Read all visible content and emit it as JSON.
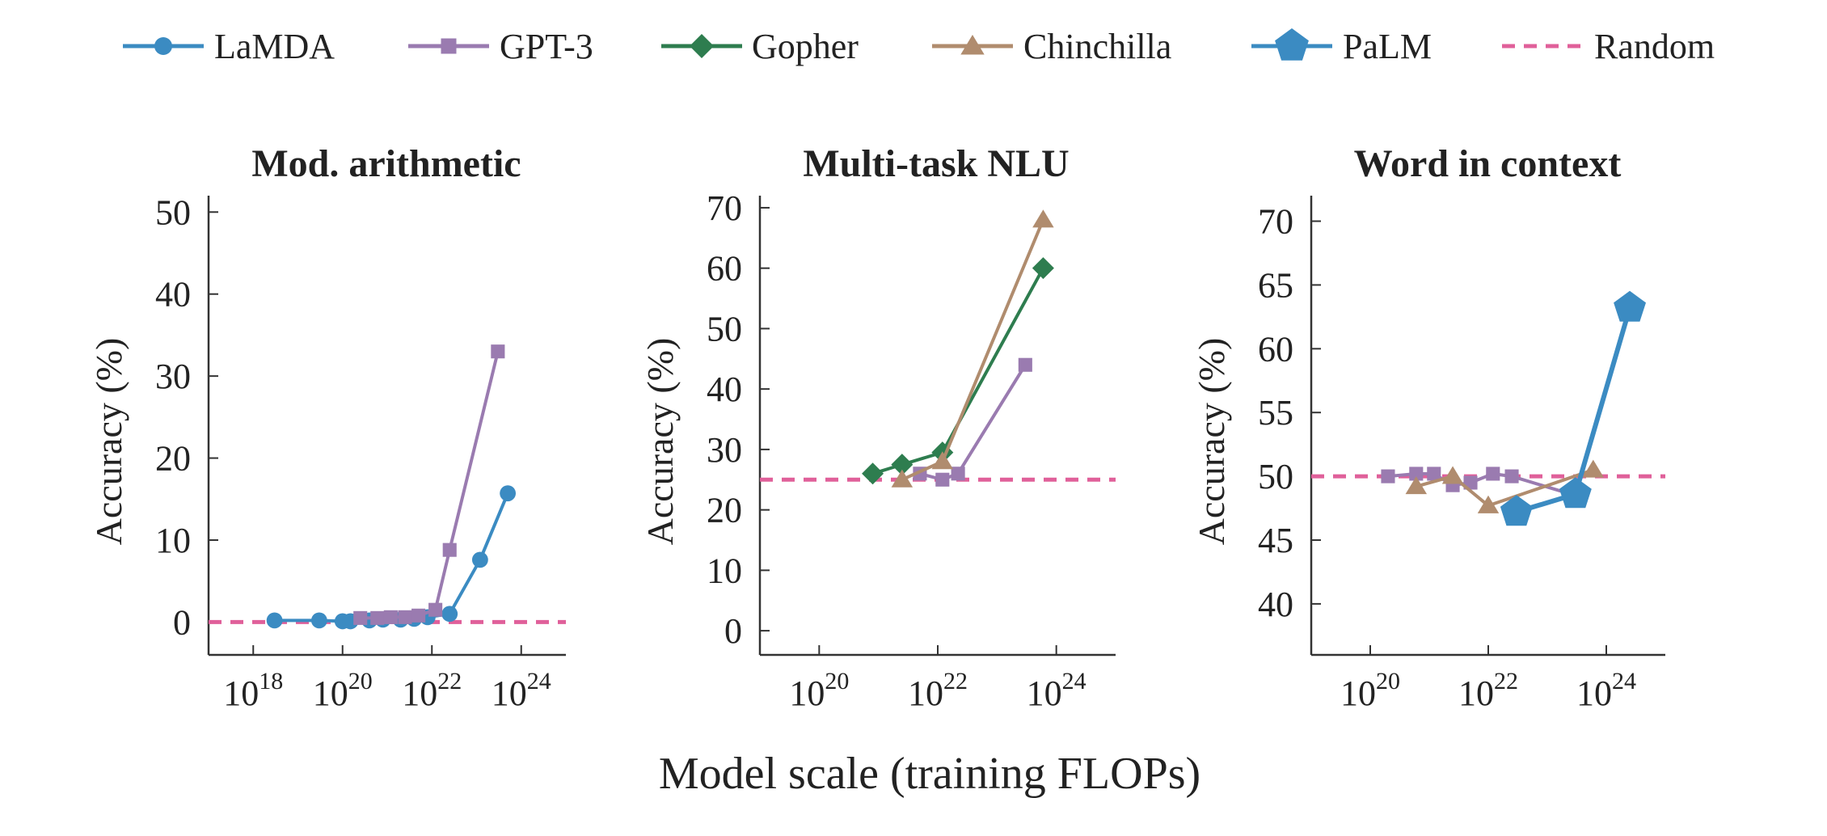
{
  "colors": {
    "LaMDA": "#3b8bc2",
    "GPT-3": "#9a7bb0",
    "Gopher": "#2e7d4f",
    "Chinchilla": "#b08c6e",
    "PaLM": "#3b8bc2",
    "Random": "#e0609a",
    "axis": "#333333"
  },
  "legend": [
    {
      "name": "LaMDA",
      "marker": "circle",
      "dashed": false
    },
    {
      "name": "GPT-3",
      "marker": "square",
      "dashed": false
    },
    {
      "name": "Gopher",
      "marker": "diamond",
      "dashed": false
    },
    {
      "name": "Chinchilla",
      "marker": "triangle",
      "dashed": false
    },
    {
      "name": "PaLM",
      "marker": "pentagon",
      "dashed": false
    },
    {
      "name": "Random",
      "marker": "none",
      "dashed": true
    }
  ],
  "xlabel": "Model scale (training FLOPs)",
  "chart_data": [
    {
      "type": "line",
      "title": "Mod. arithmetic",
      "ylabel": "Accuracy (%)",
      "x_scale": "log",
      "xlim": [
        1e+17,
        1e+25
      ],
      "ylim": [
        -4,
        52
      ],
      "x_ticks": [
        18,
        20,
        22,
        24
      ],
      "y_ticks": [
        0,
        10,
        20,
        30,
        40,
        50
      ],
      "random": 0,
      "series": [
        {
          "name": "LaMDA",
          "x": [
            3e+18,
            3e+19,
            1e+20,
            1.5e+20,
            4e+20,
            8e+20,
            2e+21,
            4e+21,
            8e+21,
            2.5e+22,
            1.2e+23,
            5e+23
          ],
          "y": [
            0.2,
            0.2,
            0.1,
            0.1,
            0.2,
            0.3,
            0.3,
            0.4,
            0.6,
            1.0,
            7.6,
            15.7
          ]
        },
        {
          "name": "GPT-3",
          "x": [
            2.5e+20,
            6e+20,
            1.2e+21,
            2.5e+21,
            5e+21,
            1.2e+22,
            2.5e+22,
            3e+23
          ],
          "y": [
            0.5,
            0.5,
            0.6,
            0.6,
            0.8,
            1.5,
            8.8,
            33.0
          ]
        }
      ]
    },
    {
      "type": "line",
      "title": "Multi-task NLU",
      "ylabel": "Accuracy (%)",
      "x_scale": "log",
      "xlim": [
        1e+19,
        1e+25
      ],
      "ylim": [
        -4,
        72
      ],
      "x_ticks": [
        20,
        22,
        24
      ],
      "y_ticks": [
        0,
        10,
        20,
        30,
        40,
        50,
        60,
        70
      ],
      "random": 25,
      "series": [
        {
          "name": "GPT-3",
          "x": [
            5e+21,
            1.2e+22,
            2.2e+22,
            3e+23
          ],
          "y": [
            26,
            25,
            26,
            44
          ]
        },
        {
          "name": "Gopher",
          "x": [
            8e+20,
            2.5e+21,
            1.2e+22,
            6e+23
          ],
          "y": [
            26,
            27.5,
            29.5,
            60
          ]
        },
        {
          "name": "Chinchilla",
          "x": [
            2.5e+21,
            1.2e+22,
            6e+23
          ],
          "y": [
            25,
            28,
            68
          ]
        }
      ]
    },
    {
      "type": "line",
      "title": "Word in context",
      "ylabel": "Accuracy (%)",
      "x_scale": "log",
      "xlim": [
        1e+19,
        1e+25
      ],
      "ylim": [
        36,
        72
      ],
      "x_ticks": [
        20,
        22,
        24
      ],
      "y_ticks": [
        40,
        45,
        50,
        55,
        60,
        65,
        70
      ],
      "random": 50,
      "series": [
        {
          "name": "GPT-3",
          "x": [
            2e+20,
            6e+20,
            1.2e+21,
            2.5e+21,
            5e+21,
            1.2e+22,
            2.5e+22,
            3e+23
          ],
          "y": [
            50,
            50.2,
            50.2,
            49.3,
            49.5,
            50.2,
            50,
            48.5
          ]
        },
        {
          "name": "Chinchilla",
          "x": [
            6e+20,
            2.5e+21,
            1e+22,
            6e+23
          ],
          "y": [
            49.2,
            50,
            47.7,
            50.5
          ]
        },
        {
          "name": "PaLM",
          "x": [
            3e+22,
            3e+23,
            2.5e+24
          ],
          "y": [
            47.2,
            48.6,
            63.2
          ]
        }
      ]
    }
  ]
}
